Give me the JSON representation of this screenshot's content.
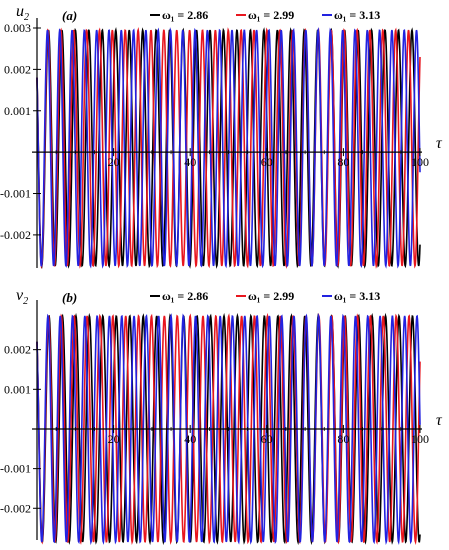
{
  "chart_data": [
    {
      "type": "line",
      "panel_label": "(a)",
      "ylabel": "u",
      "ylabel_sub": "2",
      "xlabel": "τ",
      "xlim": [
        0,
        100
      ],
      "ylim": [
        -0.0028,
        0.003
      ],
      "xticks": [
        20,
        40,
        60,
        80,
        100
      ],
      "yticks": [
        0.003,
        0.002,
        0.001,
        -0.001,
        -0.002
      ],
      "ytick_labels": [
        "0.003",
        "0.002",
        "0.001",
        "-0.001",
        "-0.002"
      ],
      "legend_position": "top",
      "series": [
        {
          "name": "ω₁ = 2.86",
          "color": "#000000",
          "omega": 2.86,
          "amplitude": 0.00285,
          "offset": 0.0001,
          "start": 0.0018
        },
        {
          "name": "ω₁ = 2.99",
          "color": "#e8161e",
          "omega": 2.99,
          "amplitude": 0.00285,
          "offset": 0.0001,
          "start": 0.0018
        },
        {
          "name": "ω₁ = 3.13",
          "color": "#2222e0",
          "omega": 3.13,
          "amplitude": 0.00285,
          "offset": 0.0001,
          "start": 0.0018
        }
      ]
    },
    {
      "type": "line",
      "panel_label": "(b)",
      "ylabel": "v",
      "ylabel_sub": "2",
      "xlabel": "τ",
      "xlim": [
        0,
        100
      ],
      "ylim": [
        -0.0028,
        0.003
      ],
      "xticks": [
        20,
        40,
        60,
        80,
        100
      ],
      "yticks": [
        0.002,
        0.001,
        -0.001,
        -0.002
      ],
      "ytick_labels": [
        "0.002",
        "0.001",
        "-0.001",
        "-0.002"
      ],
      "legend_position": "top",
      "series": [
        {
          "name": "ω₁ = 2.86",
          "color": "#000000",
          "omega": 2.86,
          "amplitude": 0.00285,
          "offset": 0.0,
          "start": 0.0022
        },
        {
          "name": "ω₁ = 2.99",
          "color": "#e8161e",
          "omega": 2.99,
          "amplitude": 0.00285,
          "offset": 0.0,
          "start": 0.0022
        },
        {
          "name": "ω₁ = 3.13",
          "color": "#2222e0",
          "omega": 3.13,
          "amplitude": 0.00285,
          "offset": 0.0,
          "start": 0.0022
        }
      ]
    }
  ]
}
